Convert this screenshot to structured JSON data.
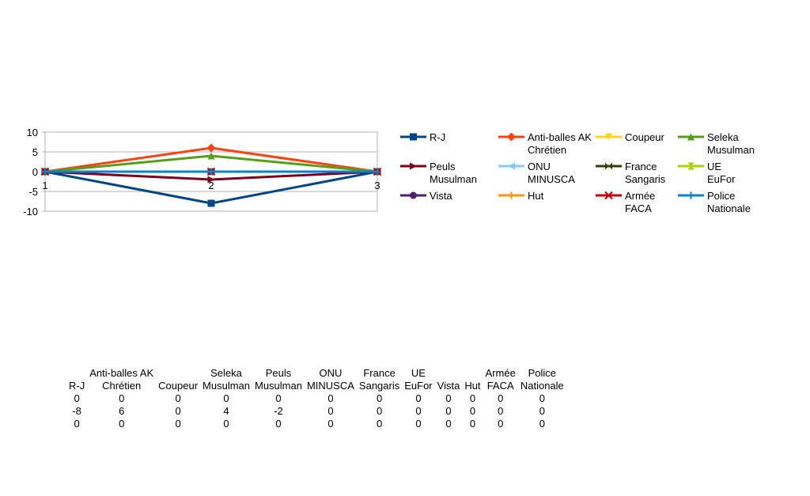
{
  "chart_data": {
    "type": "line",
    "categories": [
      "1",
      "2",
      "3"
    ],
    "y_ticks": [
      "10",
      "5",
      "0",
      "-5",
      "-10"
    ],
    "ylim": [
      -10,
      10
    ],
    "grid": true,
    "legend_position": "right",
    "series": [
      {
        "name": "R-J",
        "values": [
          0,
          -8,
          0
        ],
        "color": "#004586",
        "marker": "square"
      },
      {
        "name": "Anti-balles AK\nChrétien",
        "values": [
          0,
          6,
          0
        ],
        "color": "#ff420e",
        "marker": "diamond"
      },
      {
        "name": "Coupeur",
        "values": [
          0,
          0,
          0
        ],
        "color": "#ffd320",
        "marker": "triangle-down"
      },
      {
        "name": "Seleka\nMusulman",
        "values": [
          0,
          4,
          0
        ],
        "color": "#579d1c",
        "marker": "triangle-up"
      },
      {
        "name": "Peuls\nMusulman",
        "values": [
          0,
          -2,
          0
        ],
        "color": "#7e0021",
        "marker": "triangle-right"
      },
      {
        "name": "ONU\nMINUSCA",
        "values": [
          0,
          0,
          0
        ],
        "color": "#83caff",
        "marker": "triangle-left"
      },
      {
        "name": "France\nSangaris",
        "values": [
          0,
          0,
          0
        ],
        "color": "#314004",
        "marker": "bowtie"
      },
      {
        "name": "UE\nEuFor",
        "values": [
          0,
          0,
          0
        ],
        "color": "#aecf00",
        "marker": "hourglass"
      },
      {
        "name": "Vista",
        "values": [
          0,
          0,
          0
        ],
        "color": "#4b1f6f",
        "marker": "circle"
      },
      {
        "name": "Hut",
        "values": [
          0,
          0,
          0
        ],
        "color": "#ff950e",
        "marker": "plus"
      },
      {
        "name": "Armée\nFACA",
        "values": [
          0,
          0,
          0
        ],
        "color": "#c5000b",
        "marker": "x"
      },
      {
        "name": "Police\nNationale",
        "values": [
          0,
          0,
          0
        ],
        "color": "#0084d1",
        "marker": "plus"
      }
    ]
  },
  "table": {
    "headers": [
      "R-J",
      "Anti-balles AK\nChrétien",
      "Coupeur",
      "Seleka\nMusulman",
      "Peuls\nMusulman",
      "ONU\nMINUSCA",
      "France\nSangaris",
      "UE\nEuFor",
      "Vista",
      "Hut",
      "Armée\nFACA",
      "Police\nNationale"
    ],
    "rows": [
      [
        "0",
        "0",
        "0",
        "0",
        "0",
        "0",
        "0",
        "0",
        "0",
        "0",
        "0",
        "0"
      ],
      [
        "-8",
        "6",
        "0",
        "4",
        "-2",
        "0",
        "0",
        "0",
        "0",
        "0",
        "0",
        "0"
      ],
      [
        "0",
        "0",
        "0",
        "0",
        "0",
        "0",
        "0",
        "0",
        "0",
        "0",
        "0",
        "0"
      ]
    ]
  }
}
